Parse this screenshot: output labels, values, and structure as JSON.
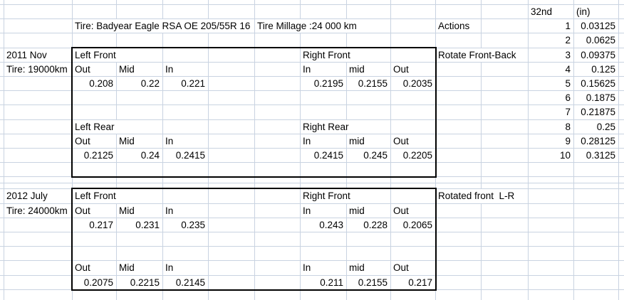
{
  "colors": {
    "background": "#ffffff",
    "gridline": "#c9d3e1",
    "text": "#000000",
    "block_border": "#000000"
  },
  "sheet": {
    "blocks": [
      {
        "id": "measurements-2011-nov",
        "cols": "B-I",
        "rows": "4-12"
      },
      {
        "id": "measurements-2012-july",
        "cols": "B-I",
        "rows": "15-21"
      }
    ],
    "cells": [
      {
        "ref": "L1",
        "text": "32nd",
        "align": "left"
      },
      {
        "ref": "M1",
        "text": "(in)",
        "align": "left"
      },
      {
        "ref": "B2",
        "span": 4,
        "text": "Tire: Badyear Eagle RSA OE 205/55R 16",
        "align": "left"
      },
      {
        "ref": "F2",
        "span": 2,
        "text": "Tire Millage :24 000 km",
        "align": "left"
      },
      {
        "ref": "J2",
        "text": "Actions",
        "align": "left"
      },
      {
        "ref": "L2",
        "text": "1",
        "align": "right"
      },
      {
        "ref": "M2",
        "text": "0.03125",
        "align": "right"
      },
      {
        "ref": "L3",
        "text": "2",
        "align": "right"
      },
      {
        "ref": "M3",
        "text": "0.0625",
        "align": "right"
      },
      {
        "ref": "A4",
        "text": "2011 Nov",
        "align": "left"
      },
      {
        "ref": "B4",
        "text": "Left Front",
        "align": "left"
      },
      {
        "ref": "G4",
        "text": "Right Front",
        "align": "left"
      },
      {
        "ref": "J4",
        "span": 2,
        "text": "Rotate Front-Back",
        "align": "left"
      },
      {
        "ref": "L4",
        "text": "3",
        "align": "right"
      },
      {
        "ref": "M4",
        "text": "0.09375",
        "align": "right"
      },
      {
        "ref": "A5",
        "text": "Tire: 19000km",
        "align": "left"
      },
      {
        "ref": "B5",
        "text": "Out",
        "align": "left"
      },
      {
        "ref": "C5",
        "text": "Mid",
        "align": "left"
      },
      {
        "ref": "D5",
        "text": "In",
        "align": "left"
      },
      {
        "ref": "G5",
        "text": "In",
        "align": "left"
      },
      {
        "ref": "H5",
        "text": "mid",
        "align": "left"
      },
      {
        "ref": "I5",
        "text": "Out",
        "align": "left"
      },
      {
        "ref": "L5",
        "text": "4",
        "align": "right"
      },
      {
        "ref": "M5",
        "text": "0.125",
        "align": "right"
      },
      {
        "ref": "B6",
        "text": "0.208",
        "align": "right"
      },
      {
        "ref": "C6",
        "text": "0.22",
        "align": "right"
      },
      {
        "ref": "D6",
        "text": "0.221",
        "align": "right"
      },
      {
        "ref": "G6",
        "text": "0.2195",
        "align": "right"
      },
      {
        "ref": "H6",
        "text": "0.2155",
        "align": "right"
      },
      {
        "ref": "I6",
        "text": "0.2035",
        "align": "right"
      },
      {
        "ref": "L6",
        "text": "5",
        "align": "right"
      },
      {
        "ref": "M6",
        "text": "0.15625",
        "align": "right"
      },
      {
        "ref": "L7",
        "text": "6",
        "align": "right"
      },
      {
        "ref": "M7",
        "text": "0.1875",
        "align": "right"
      },
      {
        "ref": "L8",
        "text": "7",
        "align": "right"
      },
      {
        "ref": "M8",
        "text": "0.21875",
        "align": "right"
      },
      {
        "ref": "B9",
        "text": "Left Rear",
        "align": "left"
      },
      {
        "ref": "G9",
        "text": "Right Rear",
        "align": "left"
      },
      {
        "ref": "L9",
        "text": "8",
        "align": "right"
      },
      {
        "ref": "M9",
        "text": "0.25",
        "align": "right"
      },
      {
        "ref": "B10",
        "text": "Out",
        "align": "left"
      },
      {
        "ref": "C10",
        "text": "Mid",
        "align": "left"
      },
      {
        "ref": "D10",
        "text": "In",
        "align": "left"
      },
      {
        "ref": "G10",
        "text": "In",
        "align": "left"
      },
      {
        "ref": "H10",
        "text": "mid",
        "align": "left"
      },
      {
        "ref": "I10",
        "text": "Out",
        "align": "left"
      },
      {
        "ref": "L10",
        "text": "9",
        "align": "right"
      },
      {
        "ref": "M10",
        "text": "0.28125",
        "align": "right"
      },
      {
        "ref": "B11",
        "text": "0.2125",
        "align": "right"
      },
      {
        "ref": "C11",
        "text": "0.24",
        "align": "right"
      },
      {
        "ref": "D11",
        "text": "0.2415",
        "align": "right"
      },
      {
        "ref": "G11",
        "text": "0.2415",
        "align": "right"
      },
      {
        "ref": "H11",
        "text": "0.245",
        "align": "right"
      },
      {
        "ref": "I11",
        "text": "0.2205",
        "align": "right"
      },
      {
        "ref": "L11",
        "text": "10",
        "align": "right"
      },
      {
        "ref": "M11",
        "text": "0.3125",
        "align": "right"
      },
      {
        "ref": "A15",
        "text": "2012 July",
        "align": "left"
      },
      {
        "ref": "B15",
        "text": "Left Front",
        "align": "left"
      },
      {
        "ref": "G15",
        "text": "Right Front",
        "align": "left"
      },
      {
        "ref": "J15",
        "span": 2,
        "text": "Rotated front  L-R",
        "align": "left"
      },
      {
        "ref": "A16",
        "text": "Tire: 24000km",
        "align": "left"
      },
      {
        "ref": "B16",
        "text": "Out",
        "align": "left"
      },
      {
        "ref": "C16",
        "text": "Mid",
        "align": "left"
      },
      {
        "ref": "D16",
        "text": "In",
        "align": "left"
      },
      {
        "ref": "G16",
        "text": "In",
        "align": "left"
      },
      {
        "ref": "H16",
        "text": "mid",
        "align": "left"
      },
      {
        "ref": "I16",
        "text": "Out",
        "align": "left"
      },
      {
        "ref": "B17",
        "text": "0.217",
        "align": "right"
      },
      {
        "ref": "C17",
        "text": "0.231",
        "align": "right"
      },
      {
        "ref": "D17",
        "text": "0.235",
        "align": "right"
      },
      {
        "ref": "G17",
        "text": "0.243",
        "align": "right"
      },
      {
        "ref": "H17",
        "text": "0.228",
        "align": "right"
      },
      {
        "ref": "I17",
        "text": "0.2065",
        "align": "right"
      },
      {
        "ref": "B20",
        "text": "Out",
        "align": "left"
      },
      {
        "ref": "C20",
        "text": "Mid",
        "align": "left"
      },
      {
        "ref": "D20",
        "text": "In",
        "align": "left"
      },
      {
        "ref": "G20",
        "text": "In",
        "align": "left"
      },
      {
        "ref": "H20",
        "text": "mid",
        "align": "left"
      },
      {
        "ref": "I20",
        "text": "Out",
        "align": "left"
      },
      {
        "ref": "B21",
        "text": "0.2075",
        "align": "right"
      },
      {
        "ref": "C21",
        "text": "0.2215",
        "align": "right"
      },
      {
        "ref": "D21",
        "text": "0.2145",
        "align": "right"
      },
      {
        "ref": "G21",
        "text": "0.211",
        "align": "right"
      },
      {
        "ref": "H21",
        "text": "0.2155",
        "align": "right"
      },
      {
        "ref": "I21",
        "text": "0.217",
        "align": "right"
      }
    ]
  }
}
